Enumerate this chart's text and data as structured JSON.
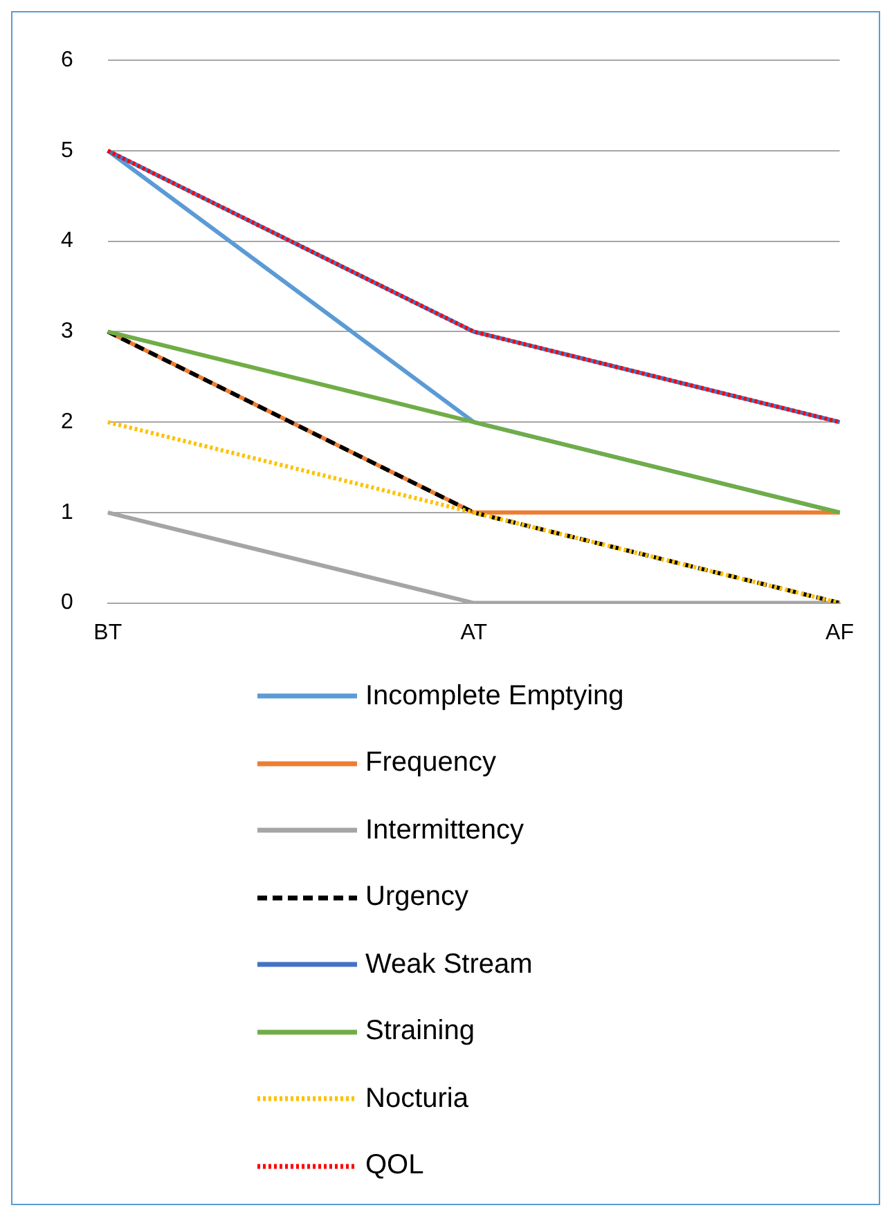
{
  "chart_data": {
    "type": "line",
    "categories": [
      "BT",
      "AT",
      "AF"
    ],
    "ylim": [
      0,
      6
    ],
    "yticks": [
      0,
      1,
      2,
      3,
      4,
      5,
      6
    ],
    "grid": "y",
    "legend": "bottom",
    "marker": "none",
    "series": [
      {
        "name": "Incomplete Emptying",
        "color": "#5b9bd5",
        "values": [
          5,
          2,
          1
        ],
        "line_style": "solid"
      },
      {
        "name": "Frequency",
        "color": "#ed7d31",
        "values": [
          3,
          1,
          1
        ],
        "line_style": "solid"
      },
      {
        "name": "Intermittency",
        "color": "#a5a5a5",
        "values": [
          1,
          0,
          0
        ],
        "line_style": "solid"
      },
      {
        "name": "Urgency",
        "color": "#000000",
        "values": [
          3,
          1,
          0
        ],
        "line_style": "dashed"
      },
      {
        "name": "Weak Stream",
        "color": "#4472c4",
        "values": [
          5,
          3,
          2
        ],
        "line_style": "solid"
      },
      {
        "name": "Straining",
        "color": "#70ad47",
        "values": [
          3,
          2,
          1
        ],
        "line_style": "solid"
      },
      {
        "name": "Nocturia",
        "color": "#ffc000",
        "values": [
          2,
          1,
          0
        ],
        "line_style": "dotted"
      },
      {
        "name": "QOL",
        "color": "#ff0000",
        "values": [
          5,
          3,
          2
        ],
        "line_style": "dotted"
      }
    ]
  }
}
